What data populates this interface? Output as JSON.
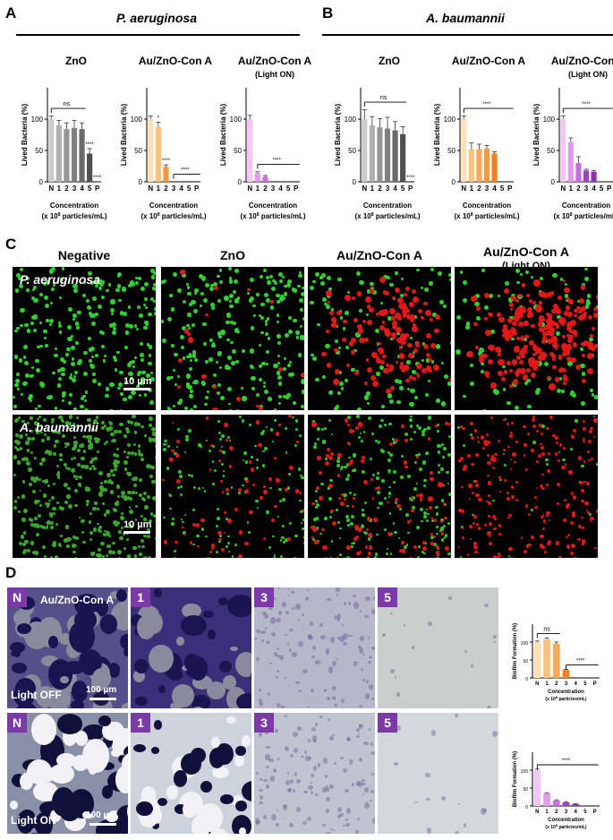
{
  "panels": {
    "A": {
      "letter": "A",
      "organism": "P. aeruginosa"
    },
    "B": {
      "letter": "B",
      "organism": "A. baumannii"
    },
    "C": {
      "letter": "C"
    },
    "D": {
      "letter": "D"
    }
  },
  "chart_common": {
    "ylabel": "Lived Bacteria (%)",
    "xlabel_line1": "Concentration",
    "xlabel_line2": "(x 10",
    "xlabel_sup": "8",
    "xlabel_line2b": " particles/mL)",
    "categories": [
      "N",
      "1",
      "2",
      "3",
      "4",
      "5",
      "P"
    ],
    "yticks": [
      "0",
      "50",
      "100"
    ]
  },
  "chart_data": [
    {
      "type": "bar",
      "panel": "A",
      "title": "ZnO",
      "subtitle": "",
      "ylim": [
        0,
        150
      ],
      "categories": [
        "N",
        "1",
        "2",
        "3",
        "4",
        "5",
        "P"
      ],
      "values": [
        100,
        90,
        84,
        86,
        84,
        45,
        0
      ],
      "errors": [
        5,
        8,
        10,
        12,
        10,
        8,
        0
      ],
      "colors": [
        "#cccccc",
        "#b0b0b0",
        "#969696",
        "#808080",
        "#6a6a6a",
        "#505050",
        "#404040"
      ],
      "annotations": [
        {
          "text": "ns",
          "bracket": [
            0,
            4
          ]
        },
        {
          "text": "****",
          "at": 5
        },
        {
          "text": "****",
          "at": 6
        }
      ]
    },
    {
      "type": "bar",
      "panel": "A",
      "title": "Au/ZnO-Con A",
      "subtitle": "",
      "ylim": [
        0,
        150
      ],
      "categories": [
        "N",
        "1",
        "2",
        "3",
        "4",
        "5",
        "P"
      ],
      "values": [
        100,
        88,
        24,
        0,
        0,
        0,
        0
      ],
      "errors": [
        5,
        7,
        3,
        0,
        0,
        0,
        0
      ],
      "colors": [
        "#fde0b8",
        "#fbc27c",
        "#f59a40",
        "#f08020",
        "#f08020",
        "#f08020",
        "#f08020"
      ],
      "annotations": [
        {
          "text": "*",
          "at": 1
        },
        {
          "text": "****",
          "at": 2
        },
        {
          "text": "****",
          "bracket": [
            3,
            6
          ]
        }
      ]
    },
    {
      "type": "bar",
      "panel": "A",
      "title": "Au/ZnO-Con A",
      "subtitle": "(Light ON)",
      "ylim": [
        0,
        150
      ],
      "categories": [
        "N",
        "1",
        "2",
        "3",
        "4",
        "5",
        "P"
      ],
      "values": [
        100,
        14,
        8,
        0,
        0,
        0,
        0
      ],
      "errors": [
        6,
        2,
        2,
        0,
        0,
        0,
        0
      ],
      "colors": [
        "#f0c8f2",
        "#e29aea",
        "#c86ee0",
        "#a040c8",
        "#a040c8",
        "#a040c8",
        "#a040c8"
      ],
      "annotations": [
        {
          "text": "****",
          "bracket": [
            1,
            6
          ]
        }
      ]
    },
    {
      "type": "bar",
      "panel": "B",
      "title": "ZnO",
      "subtitle": "",
      "ylim": [
        0,
        150
      ],
      "categories": [
        "N",
        "1",
        "2",
        "3",
        "4",
        "5",
        "P"
      ],
      "values": [
        100,
        90,
        87,
        85,
        82,
        76,
        0
      ],
      "errors": [
        15,
        14,
        14,
        18,
        14,
        12,
        0
      ],
      "colors": [
        "#cccccc",
        "#b0b0b0",
        "#969696",
        "#808080",
        "#6a6a6a",
        "#505050",
        "#404040"
      ],
      "annotations": [
        {
          "text": "ns",
          "bracket": [
            0,
            5
          ]
        },
        {
          "text": "****",
          "at": 6
        }
      ]
    },
    {
      "type": "bar",
      "panel": "B",
      "title": "Au/ZnO-Con A",
      "subtitle": "",
      "ylim": [
        0,
        150
      ],
      "categories": [
        "N",
        "1",
        "2",
        "3",
        "4",
        "5",
        "P"
      ],
      "values": [
        100,
        52,
        52,
        53,
        45,
        0,
        0
      ],
      "errors": [
        5,
        10,
        8,
        5,
        3,
        0,
        0
      ],
      "colors": [
        "#fde0b8",
        "#fbc27c",
        "#f9a85a",
        "#f59a40",
        "#f08020",
        "#f08020",
        "#f08020"
      ],
      "annotations": [
        {
          "text": "****",
          "bracket": [
            0,
            6
          ]
        }
      ]
    },
    {
      "type": "bar",
      "panel": "B",
      "title": "Au/ZnO-Con A",
      "subtitle": "(Light ON)",
      "ylim": [
        0,
        150
      ],
      "categories": [
        "N",
        "1",
        "2",
        "3",
        "4",
        "5",
        "P"
      ],
      "values": [
        100,
        63,
        30,
        18,
        16,
        0,
        0
      ],
      "errors": [
        5,
        7,
        10,
        2,
        2,
        0,
        0
      ],
      "colors": [
        "#f0c8f2",
        "#e29aea",
        "#c86ee0",
        "#a040c8",
        "#9030b8",
        "#9030b8",
        "#9030b8"
      ],
      "annotations": [
        {
          "text": "****",
          "bracket": [
            0,
            6
          ]
        }
      ]
    }
  ],
  "panel_c": {
    "columns": [
      "Negative",
      "ZnO",
      "Au/ZnO-Con A",
      "Au/ZnO-Con A"
    ],
    "column_sub": [
      "",
      "",
      "",
      "(Light ON)"
    ],
    "rows": [
      "P. aeruginosa",
      "A. baumannii"
    ],
    "scale": "10 µm"
  },
  "panel_d": {
    "header": "Au/ZnO-Con A",
    "tiles": [
      "N",
      "1",
      "3",
      "5"
    ],
    "row_labels": [
      "Light OFF",
      "Light ON"
    ],
    "scale": "100 µm",
    "charts": [
      {
        "type": "bar",
        "ylabel": "Biofilm Formation (%)",
        "ylim": [
          0,
          150
        ],
        "categories": [
          "N",
          "1",
          "2",
          "3",
          "4",
          "5",
          "P"
        ],
        "values": [
          100,
          108,
          95,
          22,
          0,
          0,
          0
        ],
        "errors": [
          3,
          4,
          5,
          2,
          0,
          0,
          0
        ],
        "colors": [
          "#fde0b8",
          "#fbc27c",
          "#f9a85a",
          "#f08020",
          "#f08020",
          "#f08020",
          "#f08020"
        ],
        "annotations": [
          {
            "text": "ns",
            "bracket": [
              0,
              2
            ]
          },
          {
            "text": "****",
            "bracket": [
              3,
              6
            ]
          }
        ],
        "xlabel": "Concentration",
        "xlabel2": "(x 10",
        "xsup": "8",
        "xlabel3": " particles/mL)"
      },
      {
        "type": "bar",
        "ylabel": "Biofilm Formation (%)",
        "ylim": [
          0,
          150
        ],
        "categories": [
          "N",
          "1",
          "2",
          "3",
          "4",
          "5",
          "P"
        ],
        "values": [
          100,
          35,
          15,
          10,
          5,
          0,
          0
        ],
        "errors": [
          3,
          2,
          2,
          2,
          1,
          0,
          0
        ],
        "colors": [
          "#f0c8f2",
          "#e29aea",
          "#c86ee0",
          "#a040c8",
          "#9030b8",
          "#9030b8",
          "#9030b8"
        ],
        "annotations": [
          {
            "text": "****",
            "bracket": [
              0,
              6
            ]
          }
        ],
        "xlabel": "Concentration",
        "xlabel2": "(x 10",
        "xsup": "8",
        "xlabel3": " particles/mL)"
      }
    ]
  }
}
